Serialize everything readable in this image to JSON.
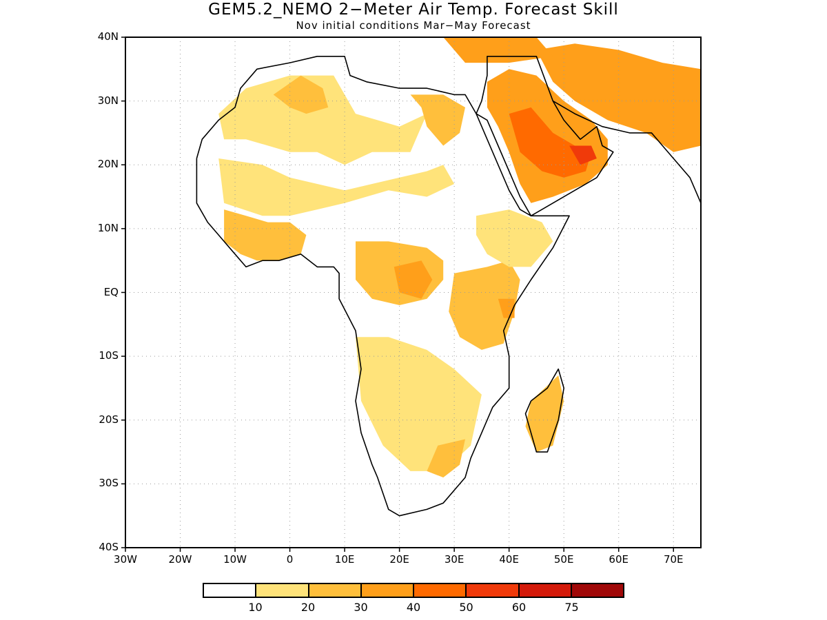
{
  "title": "GEM5.2_NEMO 2−Meter Air Temp. Forecast Skill",
  "subtitle": "Nov initial conditions  Mar−May Forecast",
  "map": {
    "lon_range": [
      -30,
      75
    ],
    "lat_range": [
      -40,
      40
    ],
    "lat_ticks": [
      "40N",
      "30N",
      "20N",
      "10N",
      "EQ",
      "10S",
      "20S",
      "30S",
      "40S"
    ],
    "lon_ticks": [
      "30W",
      "20W",
      "10W",
      "0",
      "10E",
      "20E",
      "30E",
      "40E",
      "50E",
      "60E",
      "70E"
    ],
    "grid": "dotted"
  },
  "legend": {
    "labels": [
      "10",
      "20",
      "30",
      "40",
      "50",
      "60",
      "75"
    ],
    "colors": [
      "#ffffff",
      "#ffe37a",
      "#ffbf3c",
      "#ff9f1a",
      "#ff6a00",
      "#f03a0a",
      "#d41a0a",
      "#a00808"
    ]
  },
  "skill_regions": [
    {
      "name": "sahara-west",
      "level": 1,
      "points": [
        [
          -13,
          28
        ],
        [
          -8,
          32
        ],
        [
          0,
          34
        ],
        [
          8,
          34
        ],
        [
          10,
          31
        ],
        [
          12,
          28
        ],
        [
          16,
          27
        ],
        [
          20,
          26
        ],
        [
          25,
          28
        ],
        [
          22,
          22
        ],
        [
          15,
          22
        ],
        [
          10,
          20
        ],
        [
          5,
          22
        ],
        [
          0,
          22
        ],
        [
          -8,
          24
        ],
        [
          -12,
          24
        ]
      ]
    },
    {
      "name": "sahara-west-patch",
      "level": 2,
      "points": [
        [
          -3,
          31
        ],
        [
          2,
          34
        ],
        [
          6,
          32
        ],
        [
          7,
          29
        ],
        [
          3,
          28
        ],
        [
          0,
          29
        ]
      ]
    },
    {
      "name": "libya-egypt",
      "level": 2,
      "points": [
        [
          22,
          31
        ],
        [
          28,
          31
        ],
        [
          32,
          29
        ],
        [
          31,
          25
        ],
        [
          28,
          23
        ],
        [
          25,
          26
        ],
        [
          24,
          29
        ]
      ]
    },
    {
      "name": "sahel-band",
      "level": 1,
      "points": [
        [
          -13,
          21
        ],
        [
          -5,
          20
        ],
        [
          0,
          18
        ],
        [
          5,
          17
        ],
        [
          10,
          16
        ],
        [
          15,
          17
        ],
        [
          20,
          18
        ],
        [
          25,
          19
        ],
        [
          28,
          20
        ],
        [
          30,
          17
        ],
        [
          25,
          15
        ],
        [
          18,
          16
        ],
        [
          10,
          14
        ],
        [
          5,
          13
        ],
        [
          0,
          12
        ],
        [
          -5,
          12
        ],
        [
          -12,
          14
        ]
      ]
    },
    {
      "name": "west-africa-coast",
      "level": 2,
      "points": [
        [
          -12,
          13
        ],
        [
          -8,
          12
        ],
        [
          -4,
          11
        ],
        [
          0,
          11
        ],
        [
          3,
          9
        ],
        [
          2,
          6
        ],
        [
          -2,
          5
        ],
        [
          -6,
          5
        ],
        [
          -9,
          6
        ],
        [
          -12,
          8
        ]
      ]
    },
    {
      "name": "arabia-main",
      "level": 3,
      "points": [
        [
          36,
          33
        ],
        [
          40,
          35
        ],
        [
          45,
          34
        ],
        [
          50,
          30
        ],
        [
          55,
          27
        ],
        [
          58,
          24
        ],
        [
          58,
          20
        ],
        [
          54,
          17
        ],
        [
          48,
          15
        ],
        [
          44,
          14
        ],
        [
          42,
          17
        ],
        [
          40,
          22
        ],
        [
          38,
          26
        ],
        [
          36,
          29
        ]
      ]
    },
    {
      "name": "arabia-core",
      "level": 4,
      "points": [
        [
          40,
          28
        ],
        [
          44,
          29
        ],
        [
          48,
          25
        ],
        [
          52,
          23
        ],
        [
          55,
          22
        ],
        [
          54,
          19
        ],
        [
          50,
          18
        ],
        [
          46,
          19
        ],
        [
          42,
          22
        ]
      ]
    },
    {
      "name": "arabia-hot",
      "level": 5,
      "points": [
        [
          51,
          23
        ],
        [
          55,
          23
        ],
        [
          56,
          21
        ],
        [
          53,
          20
        ]
      ]
    },
    {
      "name": "iran-region",
      "level": 3,
      "points": [
        [
          45,
          38
        ],
        [
          52,
          39
        ],
        [
          60,
          38
        ],
        [
          68,
          36
        ],
        [
          75,
          35
        ],
        [
          75,
          23
        ],
        [
          70,
          22
        ],
        [
          65,
          25
        ],
        [
          58,
          27
        ],
        [
          52,
          30
        ],
        [
          48,
          33
        ]
      ]
    },
    {
      "name": "mediterranean-north",
      "level": 3,
      "points": [
        [
          28,
          40
        ],
        [
          45,
          40
        ],
        [
          48,
          37
        ],
        [
          40,
          36
        ],
        [
          32,
          36
        ]
      ]
    },
    {
      "name": "central-africa",
      "level": 2,
      "points": [
        [
          12,
          8
        ],
        [
          18,
          8
        ],
        [
          25,
          7
        ],
        [
          28,
          5
        ],
        [
          28,
          2
        ],
        [
          25,
          -1
        ],
        [
          20,
          -2
        ],
        [
          15,
          -1
        ],
        [
          12,
          2
        ]
      ]
    },
    {
      "name": "central-africa-core",
      "level": 3,
      "points": [
        [
          19,
          4
        ],
        [
          24,
          5
        ],
        [
          26,
          2
        ],
        [
          24,
          -1
        ],
        [
          20,
          0
        ]
      ]
    },
    {
      "name": "east-africa",
      "level": 2,
      "points": [
        [
          30,
          3
        ],
        [
          36,
          4
        ],
        [
          40,
          5
        ],
        [
          42,
          2
        ],
        [
          41,
          -3
        ],
        [
          39,
          -8
        ],
        [
          35,
          -9
        ],
        [
          31,
          -7
        ],
        [
          29,
          -3
        ]
      ]
    },
    {
      "name": "ethiopia",
      "level": 1,
      "points": [
        [
          34,
          12
        ],
        [
          40,
          13
        ],
        [
          46,
          11
        ],
        [
          48,
          8
        ],
        [
          44,
          4
        ],
        [
          40,
          4
        ],
        [
          36,
          6
        ],
        [
          34,
          9
        ]
      ]
    },
    {
      "name": "kenya-core",
      "level": 3,
      "points": [
        [
          38,
          -1
        ],
        [
          41,
          -1
        ],
        [
          41,
          -4
        ],
        [
          39,
          -4
        ]
      ]
    },
    {
      "name": "southern-africa",
      "level": 1,
      "points": [
        [
          12,
          -7
        ],
        [
          18,
          -7
        ],
        [
          25,
          -9
        ],
        [
          30,
          -12
        ],
        [
          35,
          -16
        ],
        [
          33,
          -24
        ],
        [
          28,
          -28
        ],
        [
          22,
          -28
        ],
        [
          17,
          -24
        ],
        [
          13,
          -17
        ]
      ]
    },
    {
      "name": "madagascar",
      "level": 2,
      "points": [
        [
          44,
          -17
        ],
        [
          49,
          -13
        ],
        [
          50,
          -17
        ],
        [
          48,
          -24
        ],
        [
          45,
          -25
        ],
        [
          43,
          -21
        ]
      ]
    },
    {
      "name": "south-africa-east",
      "level": 2,
      "points": [
        [
          27,
          -24
        ],
        [
          32,
          -23
        ],
        [
          31,
          -27
        ],
        [
          28,
          -29
        ],
        [
          25,
          -28
        ]
      ]
    }
  ],
  "coastlines": [
    {
      "name": "africa-coast",
      "points": [
        [
          -17,
          21
        ],
        [
          -16,
          24
        ],
        [
          -13,
          27
        ],
        [
          -10,
          29
        ],
        [
          -9,
          32
        ],
        [
          -6,
          35
        ],
        [
          0,
          36
        ],
        [
          5,
          37
        ],
        [
          10,
          37
        ],
        [
          11,
          34
        ],
        [
          14,
          33
        ],
        [
          20,
          32
        ],
        [
          25,
          32
        ],
        [
          30,
          31
        ],
        [
          32,
          31
        ],
        [
          34,
          28
        ],
        [
          36,
          24
        ],
        [
          38,
          20
        ],
        [
          40,
          16
        ],
        [
          42,
          13
        ],
        [
          44,
          12
        ],
        [
          51,
          12
        ],
        [
          48,
          7
        ],
        [
          44,
          2
        ],
        [
          41,
          -2
        ],
        [
          39,
          -6
        ],
        [
          40,
          -10
        ],
        [
          40,
          -15
        ],
        [
          37,
          -18
        ],
        [
          35,
          -22
        ],
        [
          33,
          -26
        ],
        [
          32,
          -29
        ],
        [
          28,
          -33
        ],
        [
          25,
          -34
        ],
        [
          20,
          -35
        ],
        [
          18,
          -34
        ],
        [
          16,
          -29
        ],
        [
          15,
          -27
        ],
        [
          13,
          -22
        ],
        [
          12,
          -17
        ],
        [
          13,
          -12
        ],
        [
          12,
          -6
        ],
        [
          9,
          -1
        ],
        [
          9,
          3
        ],
        [
          8,
          4
        ],
        [
          5,
          4
        ],
        [
          2,
          6
        ],
        [
          -2,
          5
        ],
        [
          -5,
          5
        ],
        [
          -8,
          4
        ],
        [
          -11,
          7
        ],
        [
          -13,
          9
        ],
        [
          -15,
          11
        ],
        [
          -17,
          14
        ],
        [
          -17,
          17
        ]
      ]
    },
    {
      "name": "arabia-coast",
      "points": [
        [
          34,
          28
        ],
        [
          35,
          30
        ],
        [
          36,
          34
        ],
        [
          36,
          37
        ],
        [
          40,
          37
        ],
        [
          45,
          37
        ],
        [
          48,
          30
        ],
        [
          50,
          27
        ],
        [
          53,
          24
        ],
        [
          56,
          26
        ],
        [
          57,
          23
        ],
        [
          59,
          22
        ],
        [
          56,
          18
        ],
        [
          52,
          16
        ],
        [
          48,
          14
        ],
        [
          44,
          12
        ],
        [
          42,
          15
        ],
        [
          40,
          19
        ],
        [
          38,
          23
        ],
        [
          36,
          27
        ]
      ]
    },
    {
      "name": "madagascar-coast",
      "points": [
        [
          44,
          -17
        ],
        [
          47,
          -15
        ],
        [
          49,
          -12
        ],
        [
          50,
          -15
        ],
        [
          49,
          -20
        ],
        [
          47,
          -25
        ],
        [
          45,
          -25
        ],
        [
          44,
          -22
        ],
        [
          43,
          -19
        ]
      ]
    },
    {
      "name": "iran-india-coast",
      "points": [
        [
          48,
          30
        ],
        [
          52,
          28
        ],
        [
          57,
          26
        ],
        [
          62,
          25
        ],
        [
          66,
          25
        ],
        [
          68,
          23
        ],
        [
          70,
          21
        ],
        [
          73,
          18
        ],
        [
          75,
          14
        ]
      ]
    }
  ]
}
